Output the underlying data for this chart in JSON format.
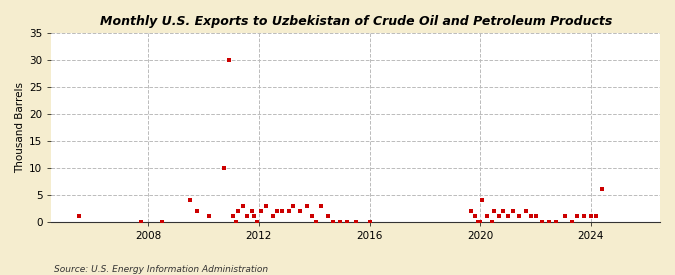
{
  "title": "Monthly U.S. Exports to Uzbekistan of Crude Oil and Petroleum Products",
  "ylabel": "Thousand Barrels",
  "source": "Source: U.S. Energy Information Administration",
  "outer_bg": "#f5edcf",
  "plot_bg": "#ffffff",
  "dot_color": "#cc0000",
  "ylim": [
    0,
    35
  ],
  "yticks": [
    0,
    5,
    10,
    15,
    20,
    25,
    30,
    35
  ],
  "xlim": [
    2004.5,
    2026.5
  ],
  "xtick_years": [
    2008,
    2012,
    2016,
    2020,
    2024
  ],
  "data_points": [
    [
      2005.5,
      1
    ],
    [
      2007.75,
      0
    ],
    [
      2008.5,
      0
    ],
    [
      2009.5,
      4
    ],
    [
      2009.75,
      2
    ],
    [
      2010.2,
      1
    ],
    [
      2010.75,
      10
    ],
    [
      2010.92,
      30
    ],
    [
      2011.08,
      1
    ],
    [
      2011.17,
      0
    ],
    [
      2011.25,
      2
    ],
    [
      2011.42,
      3
    ],
    [
      2011.58,
      1
    ],
    [
      2011.75,
      2
    ],
    [
      2011.83,
      1
    ],
    [
      2011.92,
      0
    ],
    [
      2012.08,
      2
    ],
    [
      2012.25,
      3
    ],
    [
      2012.5,
      1
    ],
    [
      2012.67,
      2
    ],
    [
      2012.83,
      2
    ],
    [
      2013.08,
      2
    ],
    [
      2013.25,
      3
    ],
    [
      2013.5,
      2
    ],
    [
      2013.75,
      3
    ],
    [
      2013.92,
      1
    ],
    [
      2014.08,
      0
    ],
    [
      2014.25,
      3
    ],
    [
      2014.5,
      1
    ],
    [
      2014.67,
      0
    ],
    [
      2014.92,
      0
    ],
    [
      2015.17,
      0
    ],
    [
      2015.5,
      0
    ],
    [
      2016.0,
      0
    ],
    [
      2019.67,
      2
    ],
    [
      2019.83,
      1
    ],
    [
      2019.92,
      0
    ],
    [
      2020.0,
      0
    ],
    [
      2020.08,
      4
    ],
    [
      2020.25,
      1
    ],
    [
      2020.42,
      0
    ],
    [
      2020.5,
      2
    ],
    [
      2020.67,
      1
    ],
    [
      2020.83,
      2
    ],
    [
      2021.0,
      1
    ],
    [
      2021.17,
      2
    ],
    [
      2021.42,
      1
    ],
    [
      2021.67,
      2
    ],
    [
      2021.83,
      1
    ],
    [
      2022.0,
      1
    ],
    [
      2022.25,
      0
    ],
    [
      2022.5,
      0
    ],
    [
      2022.75,
      0
    ],
    [
      2023.08,
      1
    ],
    [
      2023.33,
      0
    ],
    [
      2023.5,
      1
    ],
    [
      2023.75,
      1
    ],
    [
      2024.0,
      1
    ],
    [
      2024.17,
      1
    ],
    [
      2024.42,
      6
    ]
  ]
}
